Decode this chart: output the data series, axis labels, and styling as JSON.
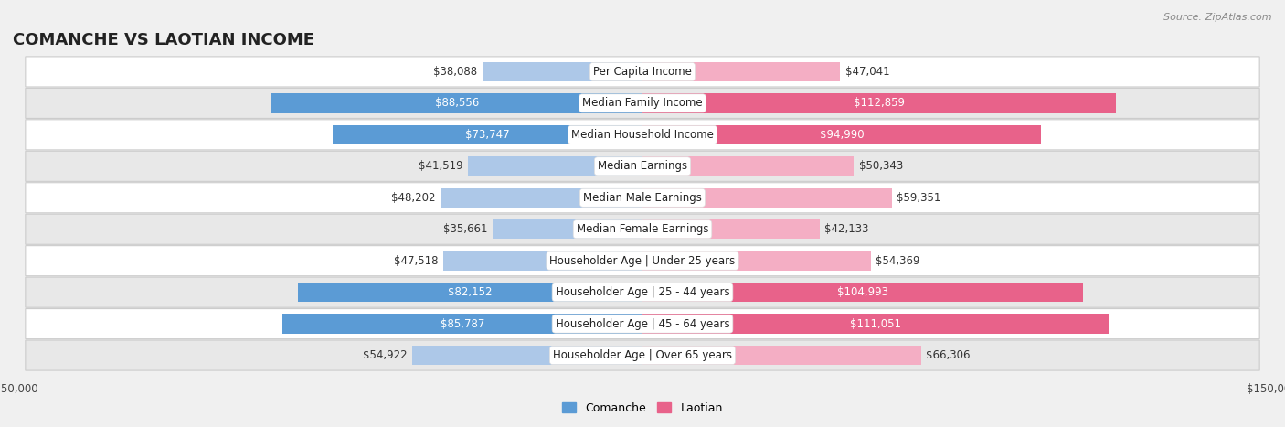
{
  "title": "COMANCHE VS LAOTIAN INCOME",
  "source": "Source: ZipAtlas.com",
  "categories": [
    "Per Capita Income",
    "Median Family Income",
    "Median Household Income",
    "Median Earnings",
    "Median Male Earnings",
    "Median Female Earnings",
    "Householder Age | Under 25 years",
    "Householder Age | 25 - 44 years",
    "Householder Age | 45 - 64 years",
    "Householder Age | Over 65 years"
  ],
  "comanche_values": [
    38088,
    88556,
    73747,
    41519,
    48202,
    35661,
    47518,
    82152,
    85787,
    54922
  ],
  "laotian_values": [
    47041,
    112859,
    94990,
    50343,
    59351,
    42133,
    54369,
    104993,
    111051,
    66306
  ],
  "comanche_labels": [
    "$38,088",
    "$88,556",
    "$73,747",
    "$41,519",
    "$48,202",
    "$35,661",
    "$47,518",
    "$82,152",
    "$85,787",
    "$54,922"
  ],
  "laotian_labels": [
    "$47,041",
    "$112,859",
    "$94,990",
    "$50,343",
    "$59,351",
    "$42,133",
    "$54,369",
    "$104,993",
    "$111,051",
    "$66,306"
  ],
  "comanche_color_light": "#adc8e8",
  "comanche_color_dark": "#5b9bd5",
  "laotian_color_light": "#f4aec4",
  "laotian_color_dark": "#e8628a",
  "axis_limit": 150000,
  "background_color": "#f0f0f0",
  "row_light_color": "#ffffff",
  "row_dark_color": "#e8e8e8",
  "title_fontsize": 13,
  "label_fontsize": 8.5,
  "category_fontsize": 8.5,
  "legend_fontsize": 9,
  "axis_fontsize": 8.5,
  "dark_threshold": 70000
}
